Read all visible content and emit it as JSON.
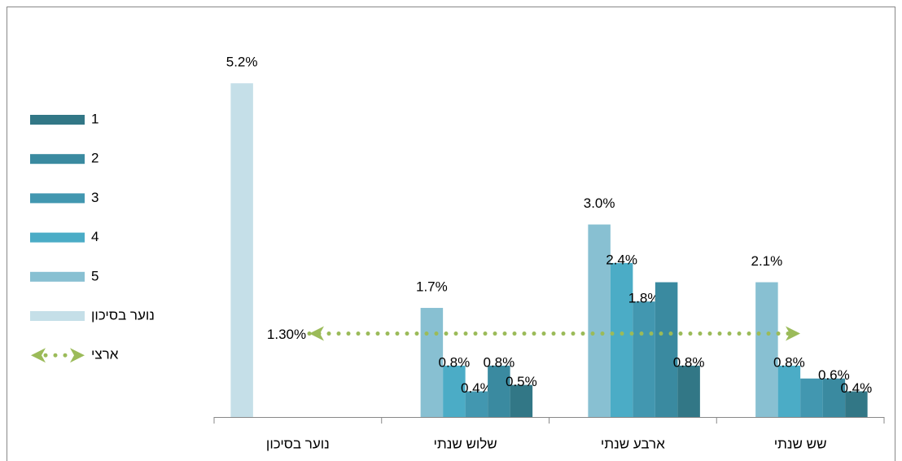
{
  "chart_data": {
    "type": "bar",
    "categories": [
      "נוער בסיכון",
      "שלוש שנתי",
      "ארבע שנתי",
      "שש שנתי"
    ],
    "series": [
      {
        "name": "נוער בסיכון",
        "color": "#c5dfe8",
        "values": [
          5.2,
          null,
          null,
          null
        ],
        "value_labels": [
          "5.2%",
          null,
          null,
          null
        ]
      },
      {
        "name": "5",
        "color": "#88c0d2",
        "values": [
          null,
          1.7,
          3.0,
          2.1
        ],
        "value_labels": [
          null,
          "1.7%",
          "3.0%",
          "2.1%"
        ]
      },
      {
        "name": "4",
        "color": "#4bacc6",
        "values": [
          null,
          0.8,
          2.4,
          0.8
        ],
        "value_labels": [
          null,
          "0.8%",
          "2.4%",
          "0.8%"
        ]
      },
      {
        "name": "3",
        "color": "#4297b0",
        "values": [
          null,
          0.4,
          1.8,
          0.6
        ],
        "value_labels": [
          null,
          "0.4%",
          "1.8%",
          null
        ]
      },
      {
        "name": "2",
        "color": "#3a8aa0",
        "values": [
          null,
          0.8,
          2.1,
          0.6
        ],
        "value_labels": [
          null,
          "0.8%",
          null,
          "0.6%"
        ]
      },
      {
        "name": "1",
        "color": "#327786",
        "values": [
          null,
          0.5,
          0.8,
          0.4
        ],
        "value_labels": [
          null,
          "0.5%",
          "0.8%",
          "0.4%"
        ]
      }
    ],
    "reference_line": {
      "name": "ארצי",
      "value": 1.3,
      "label": "1.30%",
      "color": "#9bbb59"
    },
    "ylim": [
      0,
      5.4
    ],
    "legend": "left"
  }
}
